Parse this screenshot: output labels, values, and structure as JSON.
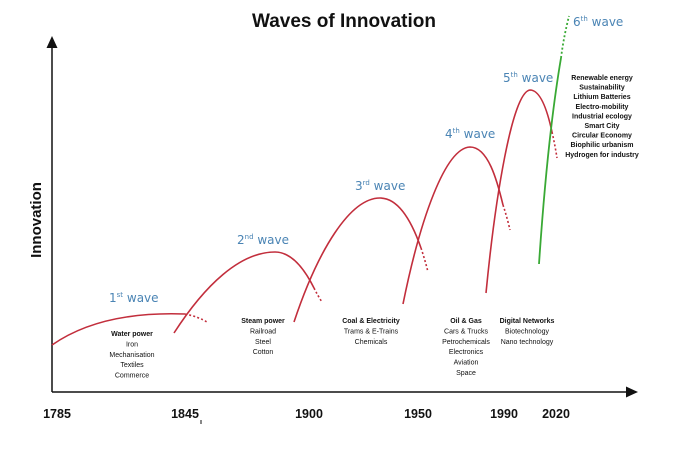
{
  "title": "Waves of Innovation",
  "y_axis_label": "Innovation",
  "x_axis_years": [
    "1785",
    "1845",
    "1900",
    "1950",
    "1990",
    "2020"
  ],
  "colors": {
    "wave_curve": "#c22e3c",
    "sixth_wave_curve": "#39a935",
    "wave_label": "#4a84b4",
    "text": "#111111"
  },
  "waves": [
    {
      "num": "1",
      "sup": "st",
      "word": "wave",
      "tech": [
        "Water power",
        "Iron",
        "Mechanisation",
        "Textiles",
        "Commerce"
      ]
    },
    {
      "num": "2",
      "sup": "nd",
      "word": "wave",
      "tech": [
        "Steam power",
        "Railroad",
        "Steel",
        "Cotton"
      ]
    },
    {
      "num": "3",
      "sup": "rd",
      "word": "wave",
      "tech": [
        "Coal & Electricity",
        "Trams & E-Trains",
        "Chemicals"
      ]
    },
    {
      "num": "4",
      "sup": "th",
      "word": "wave",
      "tech": [
        "Oil & Gas",
        "Cars & Trucks",
        "Petrochemicals",
        "Electronics",
        "Aviation",
        "Space"
      ]
    },
    {
      "num": "5",
      "sup": "th",
      "word": "wave",
      "tech": [
        "Digital Networks",
        "Biotechnology",
        "Nano technology"
      ]
    },
    {
      "num": "6",
      "sup": "th",
      "word": "wave",
      "tech": [
        "Renewable energy",
        "Sustainability",
        "Lithium Batteries",
        "Electro-mobility",
        "Industrial ecology",
        "Smart City",
        "Circular Economy",
        "Biophilic urbanism",
        "Hydrogen for industry"
      ]
    }
  ]
}
